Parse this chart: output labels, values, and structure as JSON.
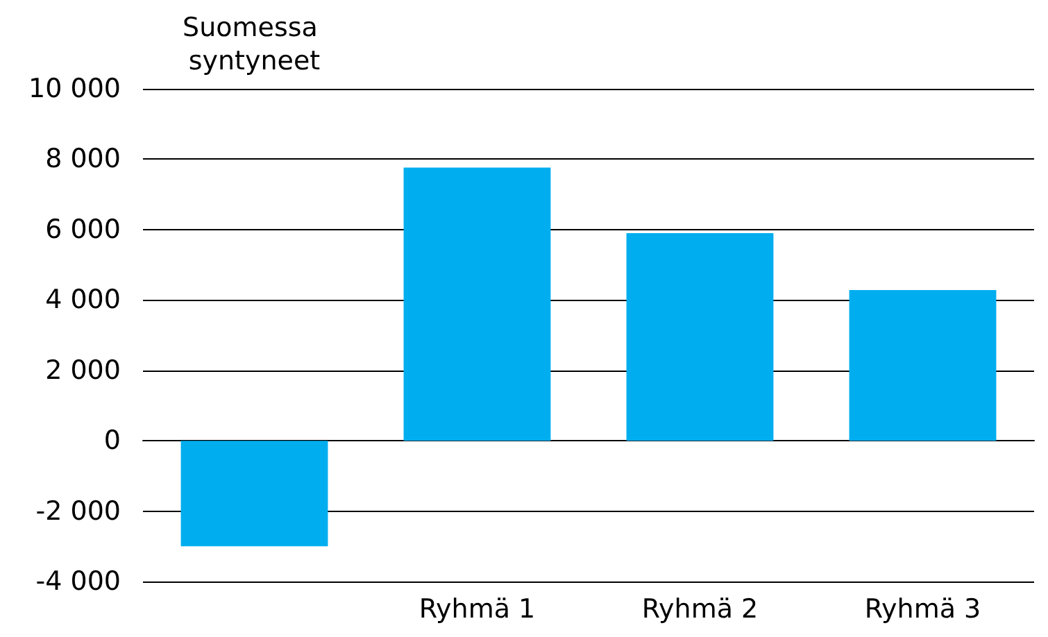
{
  "chart_data": {
    "type": "bar",
    "categories": [
      "Suomessa syntyneet",
      "Ryhmä 1",
      "Ryhmä 2",
      "Ryhmä 3"
    ],
    "values": [
      -3000,
      7760,
      5900,
      4280
    ],
    "color": "#00aeef",
    "ylim": [
      -4000,
      10000
    ],
    "yticks": [
      -4000,
      -2000,
      0,
      2000,
      4000,
      6000,
      8000,
      10000
    ],
    "grid": "y"
  }
}
